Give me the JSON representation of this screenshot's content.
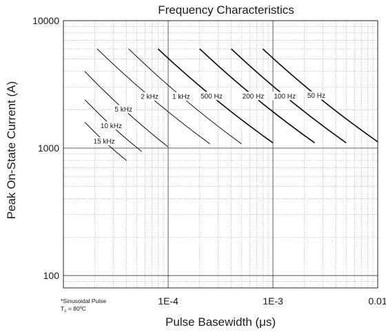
{
  "chart_data": {
    "type": "line",
    "title": "Frequency Characteristics",
    "xlabel": "Pulse Basewidth (μs)",
    "ylabel": "Peak On-State Current (A)",
    "x_scale": "log",
    "y_scale": "log",
    "xlim": [
      1e-05,
      0.01
    ],
    "ylim": [
      80,
      10000
    ],
    "x_ticks": [
      {
        "value": 0.0001,
        "label": "1E-4"
      },
      {
        "value": 0.001,
        "label": "1E-3"
      },
      {
        "value": 0.01,
        "label": "0.01"
      }
    ],
    "y_ticks": [
      {
        "value": 100,
        "label": "100"
      },
      {
        "value": 1000,
        "label": "1000"
      },
      {
        "value": 10000,
        "label": "10000"
      }
    ],
    "grid": true,
    "note": {
      "line1": "*Sinusoidal Pulse",
      "line2_main": "T",
      "line2_sub": "c",
      "line2_rest": " = 80ºC"
    },
    "series": [
      {
        "name": "15 kHz",
        "points": [
          [
            1.6e-05,
            1600
          ],
          [
            4e-05,
            800
          ]
        ]
      },
      {
        "name": "10 kHz",
        "points": [
          [
            1.6e-05,
            2400
          ],
          [
            5.6e-05,
            940
          ]
        ]
      },
      {
        "name": "5 kHz",
        "points": [
          [
            1.6e-05,
            4000
          ],
          [
            0.0001,
            1020
          ]
        ]
      },
      {
        "name": "2 kHz",
        "points": [
          [
            2.1e-05,
            6000
          ],
          [
            0.00025,
            1080
          ]
        ]
      },
      {
        "name": "1 kHz",
        "points": [
          [
            4.2e-05,
            6000
          ],
          [
            0.0005,
            1080
          ]
        ]
      },
      {
        "name": "500 Hz",
        "points": [
          [
            8e-05,
            6000
          ],
          [
            0.001,
            1100
          ]
        ]
      },
      {
        "name": "200 Hz",
        "points": [
          [
            0.0002,
            6000
          ],
          [
            0.0025,
            1100
          ]
        ]
      },
      {
        "name": "100 Hz",
        "points": [
          [
            0.0004,
            6000
          ],
          [
            0.005,
            1100
          ]
        ]
      },
      {
        "name": "50 Hz",
        "points": [
          [
            0.0008,
            6000
          ],
          [
            0.01,
            1120
          ]
        ]
      }
    ]
  }
}
